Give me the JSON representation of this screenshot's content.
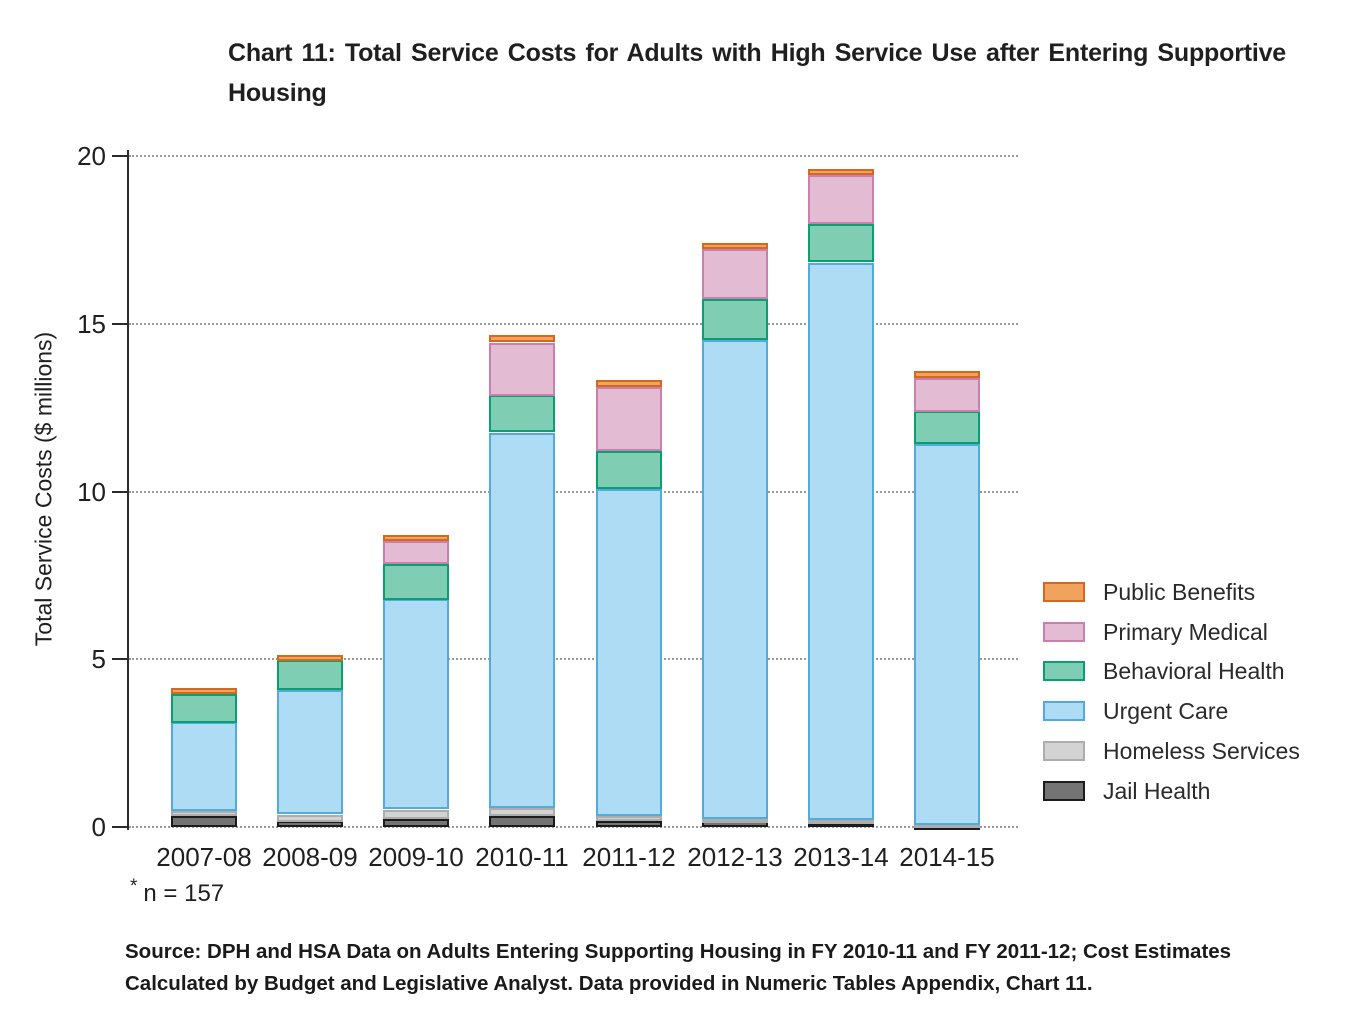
{
  "title": "Chart 11: Total Service Costs for Adults with High Service Use after Entering Supportive Housing",
  "footnote": {
    "star": "*",
    "text": "n = 157"
  },
  "source": "Source: DPH and HSA Data on Adults Entering Supporting Housing in FY 2010-11 and FY 2011-12; Cost Estimates Calculated by Budget and Legislative Analyst. Data provided in Numeric Tables Appendix, Chart 11.",
  "chart_data": {
    "type": "bar",
    "stacked": true,
    "title": "Chart 11: Total Service Costs for Adults with High Service Use after Entering Supportive Housing",
    "xlabel": "",
    "ylabel": "Total Service Costs ($ millions)",
    "ylim": [
      0,
      20
    ],
    "yticks": [
      0,
      5,
      10,
      15,
      20
    ],
    "grid": "horizontal-dotted",
    "legend_position": "right",
    "legend_order_top_to_bottom": [
      "Public Benefits",
      "Primary Medical",
      "Behavioral Health",
      "Urgent Care",
      "Homeless Services",
      "Jail Health"
    ],
    "categories": [
      "2007-08",
      "2008-09",
      "2009-10",
      "2010-11",
      "2011-12",
      "2012-13",
      "2013-14",
      "2014-15"
    ],
    "series": [
      {
        "name": "Jail Health",
        "fill": "#747474",
        "stroke": "#1c1c1c",
        "values": [
          0.32,
          0.17,
          0.25,
          0.32,
          0.17,
          0.18,
          0.11,
          0.03
        ]
      },
      {
        "name": "Homeless Services",
        "fill": "#d3d3d3",
        "stroke": "#adadad",
        "values": [
          0.16,
          0.2,
          0.27,
          0.25,
          0.15,
          0.07,
          0.1,
          0.05
        ]
      },
      {
        "name": "Urgent Care",
        "fill": "#aedcf4",
        "stroke": "#53aadf",
        "values": [
          2.65,
          3.71,
          6.27,
          11.19,
          9.76,
          14.27,
          16.62,
          11.35
        ]
      },
      {
        "name": "Behavioral Health",
        "fill": "#7fcdb2",
        "stroke": "#0a9f70",
        "values": [
          0.85,
          0.89,
          1.06,
          1.11,
          1.14,
          1.23,
          1.14,
          0.97
        ]
      },
      {
        "name": "Primary Medical",
        "fill": "#e3bcd3",
        "stroke": "#ca7fae",
        "values": [
          0.0,
          0.0,
          0.68,
          1.57,
          1.9,
          1.49,
          1.46,
          1.0
        ]
      },
      {
        "name": "Public Benefits",
        "fill": "#f0a35e",
        "stroke": "#d2691e",
        "values": [
          0.17,
          0.17,
          0.19,
          0.22,
          0.22,
          0.18,
          0.18,
          0.2
        ]
      }
    ],
    "totals": [
      4.15,
      5.14,
      8.72,
      14.66,
      13.34,
      17.42,
      19.61,
      13.6
    ]
  },
  "colors": {
    "grid": "#9a9a9a",
    "axis": "#2b2b2b",
    "text": "#1f1f1f"
  }
}
